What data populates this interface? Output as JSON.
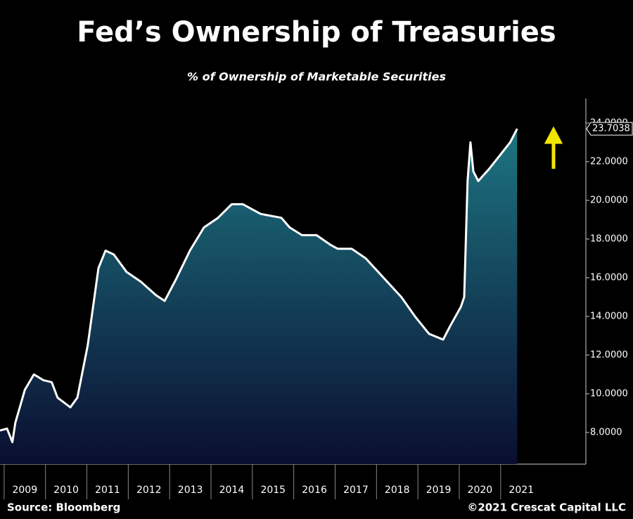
{
  "chart_data": {
    "type": "area",
    "title": "Fed’s Ownership of Treasuries",
    "subtitle": "% of Ownership of Marketable Securities",
    "source": "Source: Bloomberg",
    "credit": "©2021 Crescat Capital LLC",
    "x": [
      2008.9,
      2009.07,
      2009.2,
      2009.27,
      2009.5,
      2009.72,
      2009.95,
      2010.15,
      2010.29,
      2010.6,
      2010.77,
      2011.02,
      2011.28,
      2011.45,
      2011.65,
      2011.96,
      2012.3,
      2012.67,
      2012.88,
      2013.15,
      2013.49,
      2013.83,
      2014.17,
      2014.5,
      2014.77,
      2015.2,
      2015.7,
      2015.9,
      2016.2,
      2016.55,
      2016.89,
      2017.06,
      2017.4,
      2017.74,
      2018.17,
      2018.6,
      2018.93,
      2019.27,
      2019.61,
      2019.78,
      2020.04,
      2020.12,
      2020.2,
      2020.27,
      2020.34,
      2020.46,
      2020.71,
      2020.97,
      2021.23,
      2021.4
    ],
    "values": [
      8.1,
      8.2,
      7.5,
      8.5,
      10.2,
      11.0,
      10.7,
      10.6,
      9.8,
      9.3,
      9.8,
      12.5,
      16.5,
      17.4,
      17.2,
      16.3,
      15.8,
      15.1,
      14.8,
      15.9,
      17.4,
      18.6,
      19.1,
      19.8,
      19.8,
      19.3,
      19.1,
      18.6,
      18.2,
      18.2,
      17.7,
      17.5,
      17.5,
      17.0,
      16.0,
      15.0,
      14.0,
      13.1,
      12.8,
      13.5,
      14.5,
      15.0,
      21.0,
      23.0,
      21.5,
      21.0,
      21.6,
      22.3,
      23.0,
      23.7038
    ],
    "color": "#ffffff",
    "xlim": [
      2008.9,
      2023.06
    ],
    "xticks": [
      {
        "value": 2009,
        "label": "2009"
      },
      {
        "value": 2010,
        "label": "2010"
      },
      {
        "value": 2011,
        "label": "2011"
      },
      {
        "value": 2012,
        "label": "2012"
      },
      {
        "value": 2013,
        "label": "2013"
      },
      {
        "value": 2014,
        "label": "2014"
      },
      {
        "value": 2015,
        "label": "2015"
      },
      {
        "value": 2016,
        "label": "2016"
      },
      {
        "value": 2017,
        "label": "2017"
      },
      {
        "value": 2018,
        "label": "2018"
      },
      {
        "value": 2019,
        "label": "2019"
      },
      {
        "value": 2020,
        "label": "2020"
      },
      {
        "value": 2021,
        "label": "2021"
      }
    ],
    "ylim": [
      6.36,
      25.27
    ],
    "yticks": [
      {
        "value": 8,
        "label": "8.0000"
      },
      {
        "value": 10,
        "label": "10.0000"
      },
      {
        "value": 12,
        "label": "12.0000"
      },
      {
        "value": 14,
        "label": "14.0000"
      },
      {
        "value": 16,
        "label": "16.0000"
      },
      {
        "value": 18,
        "label": "18.0000"
      },
      {
        "value": 20,
        "label": "20.0000"
      },
      {
        "value": 22,
        "label": "22.0000"
      },
      {
        "value": 24,
        "label": "24.0000"
      }
    ]
  }
}
